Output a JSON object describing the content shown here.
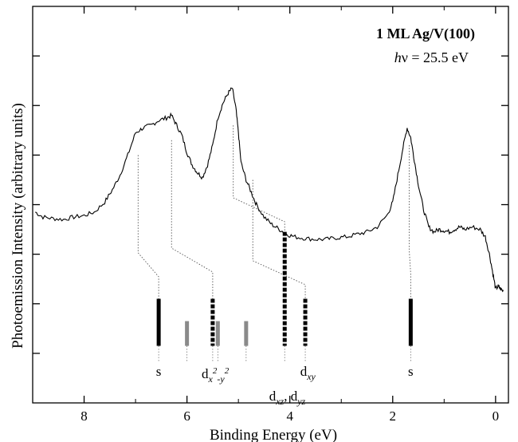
{
  "chart_data": {
    "type": "line",
    "title": "1 ML Ag/V(100)",
    "subtitle_prefix": "h",
    "subtitle_nu": "ν",
    "subtitle_value": " = 25.5 eV",
    "xlabel": "Binding Energy (eV)",
    "ylabel": "Photoemission Intensity (arbitrary units)",
    "xlim": [
      9.0,
      -0.25
    ],
    "ylim": [
      0,
      8
    ],
    "x_ticks": [
      8,
      6,
      4,
      2,
      0
    ],
    "x_tick_labels": [
      "8",
      "6",
      "4",
      "2",
      "0"
    ],
    "y_ticks": [
      1,
      2,
      3,
      4,
      5,
      6,
      7
    ],
    "grid": false,
    "axis_reversed": true,
    "spectrum": {
      "x": [
        8.95,
        8.8,
        8.6,
        8.4,
        8.2,
        8.0,
        7.8,
        7.6,
        7.45,
        7.3,
        7.15,
        7.0,
        6.85,
        6.7,
        6.55,
        6.4,
        6.3,
        6.2,
        6.1,
        6.0,
        5.9,
        5.8,
        5.7,
        5.6,
        5.5,
        5.4,
        5.3,
        5.2,
        5.12,
        5.05,
        5.0,
        4.95,
        4.85,
        4.75,
        4.65,
        4.5,
        4.35,
        4.2,
        4.05,
        3.9,
        3.7,
        3.5,
        3.3,
        3.1,
        2.9,
        2.7,
        2.5,
        2.3,
        2.1,
        2.0,
        1.9,
        1.8,
        1.72,
        1.65,
        1.58,
        1.5,
        1.4,
        1.3,
        1.2,
        1.1,
        1.0,
        0.9,
        0.8,
        0.7,
        0.6,
        0.45,
        0.3,
        0.2,
        0.12,
        0.05,
        0.0,
        -0.05,
        -0.1,
        -0.15
      ],
      "y": [
        3.85,
        3.75,
        3.72,
        3.7,
        3.75,
        3.78,
        3.85,
        4.05,
        4.3,
        4.6,
        5.0,
        5.45,
        5.55,
        5.6,
        5.7,
        5.75,
        5.8,
        5.6,
        5.4,
        5.05,
        4.8,
        4.65,
        4.55,
        4.8,
        5.2,
        5.75,
        6.05,
        6.25,
        6.35,
        5.95,
        5.45,
        4.85,
        4.5,
        4.25,
        4.0,
        3.75,
        3.6,
        3.5,
        3.4,
        3.35,
        3.32,
        3.3,
        3.3,
        3.33,
        3.35,
        3.4,
        3.45,
        3.55,
        3.8,
        4.05,
        4.6,
        5.15,
        5.55,
        5.35,
        4.9,
        4.4,
        3.9,
        3.55,
        3.45,
        3.5,
        3.48,
        3.45,
        3.5,
        3.55,
        3.5,
        3.55,
        3.5,
        3.35,
        3.0,
        2.6,
        2.3,
        2.35,
        2.3,
        2.25
      ]
    },
    "markers": [
      {
        "e": 6.55,
        "y_top": 2.1,
        "y_bot": 1.15,
        "style": "solid",
        "color": "#000000"
      },
      {
        "e": 6.0,
        "y_top": 1.65,
        "y_bot": 1.15,
        "style": "solid",
        "color": "#8a8a8a"
      },
      {
        "e": 5.5,
        "y_top": 2.1,
        "y_bot": 1.15,
        "style": "dashed",
        "color": "#000000"
      },
      {
        "e": 5.4,
        "y_top": 1.65,
        "y_bot": 1.15,
        "style": "solid",
        "color": "#8a8a8a"
      },
      {
        "e": 4.85,
        "y_top": 1.65,
        "y_bot": 1.15,
        "style": "solid",
        "color": "#8a8a8a"
      },
      {
        "e": 4.1,
        "y_top": 3.45,
        "y_bot": 1.15,
        "style": "dashed",
        "color": "#000000"
      },
      {
        "e": 3.7,
        "y_top": 2.1,
        "y_bot": 1.15,
        "style": "dashed",
        "color": "#000000"
      },
      {
        "e": 1.65,
        "y_top": 2.1,
        "y_bot": 1.15,
        "style": "solid",
        "color": "#000000"
      }
    ],
    "connectors": [
      {
        "from_e": 6.95,
        "from_y": 5.0,
        "to_e": 6.55,
        "to_y": 2.1
      },
      {
        "from_e": 6.3,
        "from_y": 5.3,
        "to_e": 5.5,
        "to_y": 2.1
      },
      {
        "from_e": 5.1,
        "from_y": 5.6,
        "to_e": 4.1,
        "to_y": 3.45
      },
      {
        "from_e": 4.72,
        "from_y": 4.5,
        "to_e": 3.7,
        "to_y": 2.1
      },
      {
        "from_e": 1.68,
        "from_y": 5.2,
        "to_e": 1.65,
        "to_y": 2.1
      }
    ],
    "annotations": [
      {
        "e": 6.55,
        "y": 0.55,
        "parts": [
          [
            "s",
            ""
          ]
        ]
      },
      {
        "e": 5.45,
        "y": 0.5,
        "parts": [
          [
            "d",
            ""
          ],
          [
            "x",
            "sub"
          ],
          [
            "2",
            "sup"
          ],
          [
            "-y",
            "sub"
          ],
          [
            "2",
            "sup"
          ]
        ]
      },
      {
        "e": 3.65,
        "y": 0.55,
        "parts": [
          [
            "d",
            ""
          ],
          [
            "xy",
            "sub"
          ]
        ]
      },
      {
        "e": 4.05,
        "y": 0.05,
        "parts": [
          [
            "d",
            ""
          ],
          [
            "xz",
            "sub"
          ],
          [
            ", d",
            ""
          ],
          [
            "yz",
            "sub"
          ]
        ]
      },
      {
        "e": 1.65,
        "y": 0.55,
        "parts": [
          [
            "s",
            ""
          ]
        ]
      }
    ]
  }
}
